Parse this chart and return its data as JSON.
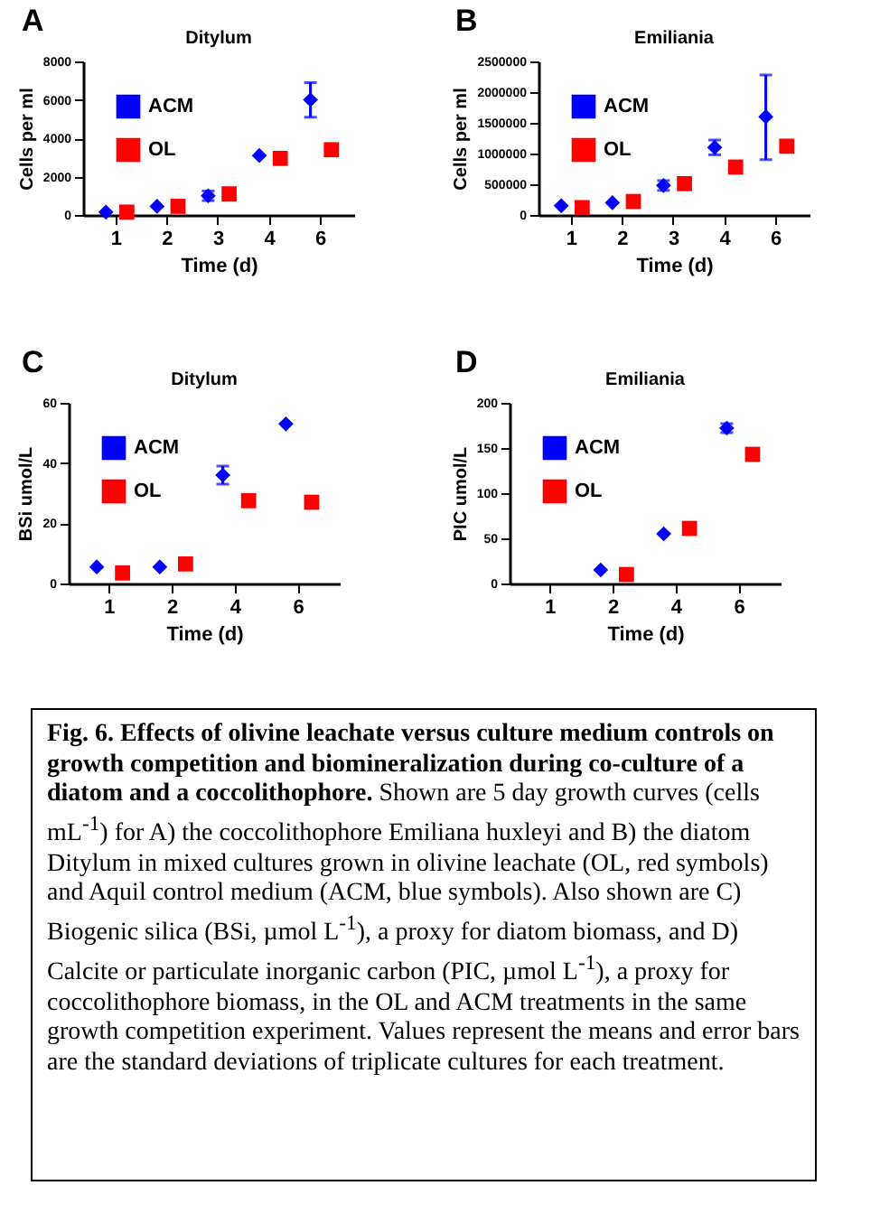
{
  "chart_data": [
    {
      "type": "scatter",
      "title": "Ditylum",
      "xlabel": "Time (d)",
      "ylabel": "Cells per ml",
      "annotations": [
        "A"
      ],
      "categories": [
        "1",
        "2",
        "3",
        "4",
        "6"
      ],
      "legend": "top left",
      "grid": false,
      "ylim": [
        0,
        8000
      ],
      "yticks": [
        0,
        2000,
        4000,
        6000,
        8000
      ],
      "series": [
        {
          "name": "ACM",
          "color": "#0000ff",
          "marker": "diamond",
          "values": [
            150,
            450,
            1000,
            3100,
            6000
          ],
          "errors": [
            null,
            null,
            250,
            null,
            900
          ]
        },
        {
          "name": "OL",
          "color": "#ff0000",
          "marker": "square",
          "values": [
            150,
            450,
            1100,
            2950,
            3400
          ],
          "errors": [
            null,
            null,
            null,
            null,
            null
          ]
        }
      ]
    },
    {
      "type": "scatter",
      "title": "Emiliania",
      "xlabel": "Time (d)",
      "ylabel": "Cells per ml",
      "annotations": [
        "B"
      ],
      "categories": [
        "1",
        "2",
        "3",
        "4",
        "6"
      ],
      "legend": "top left",
      "grid": false,
      "ylim": [
        0,
        2500000
      ],
      "yticks": [
        0,
        500000,
        1000000,
        1500000,
        2000000,
        2500000
      ],
      "series": [
        {
          "name": "ACM",
          "color": "#0000ff",
          "marker": "diamond",
          "values": [
            150000,
            200000,
            480000,
            1100000,
            1600000
          ],
          "errors": [
            null,
            null,
            80000,
            120000,
            [
              900000,
              2280000
            ]
          ]
        },
        {
          "name": "OL",
          "color": "#ff0000",
          "marker": "square",
          "values": [
            120000,
            220000,
            510000,
            780000,
            1120000
          ],
          "errors": [
            null,
            null,
            null,
            60000,
            null
          ]
        }
      ]
    },
    {
      "type": "scatter",
      "title": "Ditylum",
      "xlabel": "Time (d)",
      "ylabel": "BSi umol/L",
      "annotations": [
        "C"
      ],
      "categories": [
        "1",
        "2",
        "4",
        "6"
      ],
      "legend": "top left",
      "grid": false,
      "ylim": [
        0,
        60
      ],
      "yticks": [
        0,
        20,
        40,
        60
      ],
      "series": [
        {
          "name": "ACM",
          "color": "#0000ff",
          "marker": "diamond",
          "values": [
            5.5,
            5.5,
            36,
            53
          ],
          "errors": [
            null,
            null,
            3,
            null
          ]
        },
        {
          "name": "OL",
          "color": "#ff0000",
          "marker": "square",
          "values": [
            3.5,
            6.5,
            27.5,
            27
          ],
          "errors": [
            null,
            null,
            null,
            null
          ]
        }
      ]
    },
    {
      "type": "scatter",
      "title": "Emiliania",
      "xlabel": "Time (d)",
      "ylabel": "PIC umol/L",
      "annotations": [
        "D",
        "Fig. 6.  Effects of olivine leachate versus culture medium controls on growth competition and biomineralization during co-culture of a diatom and a coccolithophore.",
        "Shown are 5 day growth curves (cells mL$^{-1}$) for A) the coccolithophore Emiliana huxleyi and B) the diatom Ditylum in mixed cultures grown in olivine leachate (OL, red symbols) and Aquil control medium (ACM, blue symbols). Also shown are C) Biogenic silica (BSi, µmol L$^{-1}$), a proxy for diatom biomass, and D) Calcite or particulate inorganic carbon (PIC, µmol L$^{-1}$), a proxy for coccolithophore biomass, in the OL and ACM treatments in the same growth competition experiment. Values represent the means and error bars are the standard deviations of triplicate cultures for each treatment."
      ],
      "categories": [
        "1",
        "2",
        "4",
        "6"
      ],
      "legend": "top left",
      "grid": false,
      "ylim": [
        0,
        200
      ],
      "yticks": [
        0,
        50,
        100,
        150,
        200
      ],
      "series": [
        {
          "name": "ACM",
          "color": "#0000ff",
          "marker": "diamond",
          "values": [
            null,
            15,
            55,
            172
          ],
          "errors": [
            null,
            null,
            null,
            5
          ]
        },
        {
          "name": "OL",
          "color": "#ff0000",
          "marker": "square",
          "values": [
            null,
            10,
            61,
            143
          ],
          "errors": [
            null,
            null,
            null,
            null
          ]
        }
      ]
    }
  ]
}
